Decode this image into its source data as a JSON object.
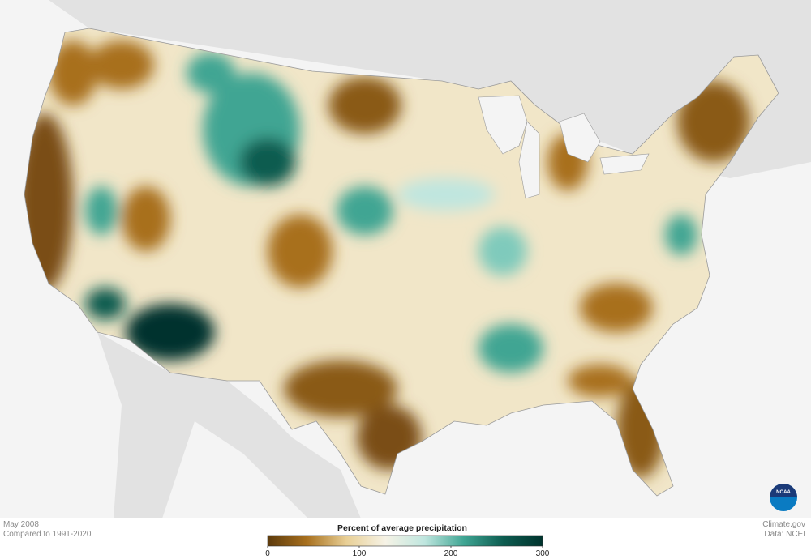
{
  "caption": {
    "date": "May 2008",
    "baseline": "Compared to 1991-2020"
  },
  "legend": {
    "title": "Percent of average precipitation",
    "range": [
      0,
      300
    ],
    "ticks": [
      0,
      100,
      200,
      300
    ],
    "colors": [
      "#5c3a0c",
      "#a8701e",
      "#e8cf95",
      "#f6f3e6",
      "#bfe6df",
      "#3fa593",
      "#0d5c50",
      "#00332d"
    ]
  },
  "credit": {
    "site": "Climate.gov",
    "source": "Data: NCEI"
  },
  "logo": "NOAA"
}
